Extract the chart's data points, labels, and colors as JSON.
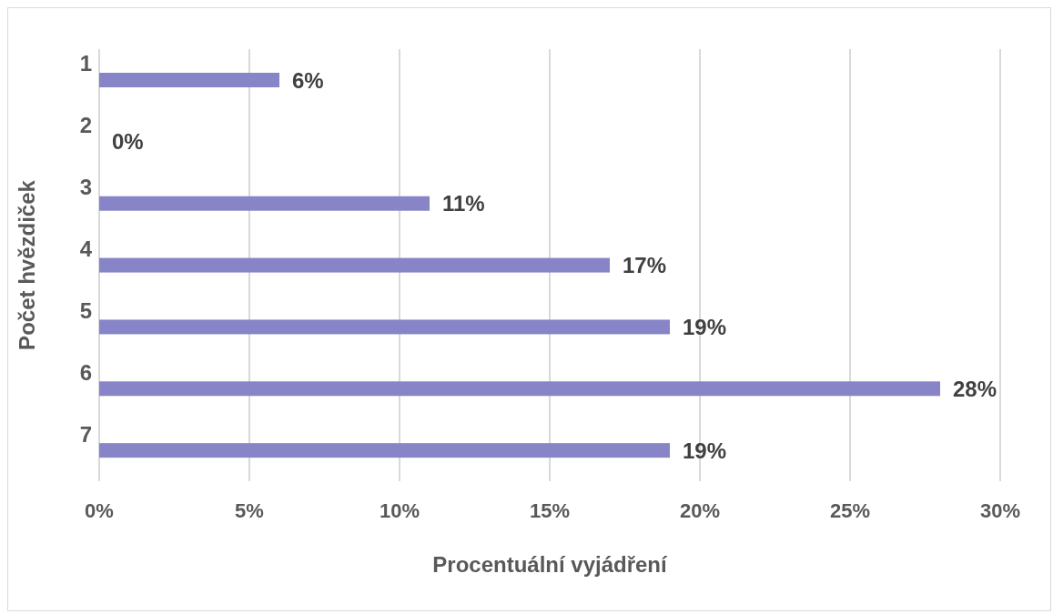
{
  "chart_data": {
    "type": "bar",
    "orientation": "horizontal",
    "xlabel": "Procentuální vyjádření",
    "ylabel": "Počet hvězdiček",
    "categories": [
      "1",
      "2",
      "3",
      "4",
      "5",
      "6",
      "7"
    ],
    "values": [
      6,
      0,
      11,
      17,
      19,
      28,
      19
    ],
    "value_labels": [
      "6%",
      "0%",
      "11%",
      "17%",
      "19%",
      "28%",
      "19%"
    ],
    "color": "#8884c8",
    "xlim": [
      0,
      30
    ],
    "xticks": [
      {
        "value": 0,
        "label": "0%"
      },
      {
        "value": 5,
        "label": "5%"
      },
      {
        "value": 10,
        "label": "10%"
      },
      {
        "value": 15,
        "label": "15%"
      },
      {
        "value": 20,
        "label": "20%"
      },
      {
        "value": 25,
        "label": "25%"
      },
      {
        "value": 30,
        "label": "30%"
      }
    ],
    "grid": "x",
    "legend": false
  }
}
